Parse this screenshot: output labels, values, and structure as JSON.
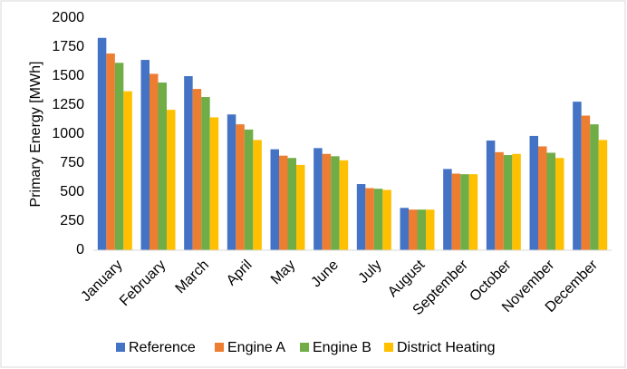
{
  "chart_data": {
    "type": "bar",
    "y_label": "Primary Energy [MWh]",
    "categories": [
      "January",
      "February",
      "March",
      "April",
      "May",
      "June",
      "July",
      "August",
      "September",
      "October",
      "November",
      "December"
    ],
    "series": [
      {
        "name": "Reference",
        "color": "#4472c4",
        "values": [
          1830,
          1640,
          1500,
          1170,
          870,
          880,
          570,
          365,
          700,
          945,
          985,
          1280
        ]
      },
      {
        "name": "Engine A",
        "color": "#ed7d31",
        "values": [
          1695,
          1520,
          1390,
          1085,
          815,
          830,
          535,
          350,
          660,
          845,
          895,
          1160
        ]
      },
      {
        "name": "Engine B",
        "color": "#70ad47",
        "values": [
          1615,
          1445,
          1320,
          1040,
          795,
          810,
          530,
          350,
          655,
          820,
          840,
          1085
        ]
      },
      {
        "name": "District Heating",
        "color": "#ffc000",
        "values": [
          1370,
          1210,
          1145,
          950,
          735,
          775,
          520,
          350,
          655,
          830,
          795,
          950
        ]
      }
    ],
    "ylim": [
      0,
      2000
    ],
    "yticks": [
      0,
      250,
      500,
      750,
      1000,
      1250,
      1500,
      1750,
      2000
    ],
    "grid": false,
    "legend": "bottom"
  }
}
